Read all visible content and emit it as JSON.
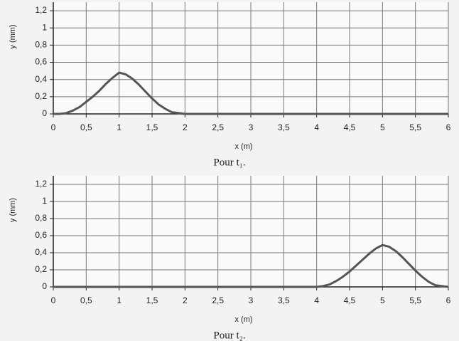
{
  "chart_data": [
    {
      "type": "line",
      "caption": "Pour t₁.",
      "xlabel": "x (m)",
      "ylabel": "y (mm)",
      "xlim": [
        0,
        6
      ],
      "ylim": [
        0,
        1.3
      ],
      "grid": true,
      "xticks": [
        0,
        {
          "value": 0.5,
          "label": "0,5"
        },
        1,
        {
          "value": 1.5,
          "label": "1,5"
        },
        2,
        {
          "value": 2.5,
          "label": "2,5"
        },
        3,
        {
          "value": 3.5,
          "label": "3,5"
        },
        4,
        {
          "value": 4.5,
          "label": "4,5"
        },
        5,
        {
          "value": 5.5,
          "label": "5,5"
        },
        6
      ],
      "yticks": [
        0,
        {
          "value": 0.2,
          "label": "0,2"
        },
        {
          "value": 0.4,
          "label": "0,4"
        },
        {
          "value": 0.6,
          "label": "0,6"
        },
        {
          "value": 0.8,
          "label": "0,8"
        },
        1,
        {
          "value": 1.2,
          "label": "1,2"
        }
      ],
      "series": [
        {
          "color": "#555555",
          "x": [
            0,
            0.1,
            0.2,
            0.3,
            0.4,
            0.5,
            0.6,
            0.7,
            0.8,
            0.9,
            1.0,
            1.1,
            1.2,
            1.3,
            1.4,
            1.5,
            1.6,
            1.7,
            1.8,
            1.9,
            2.0,
            6
          ],
          "values": [
            0,
            0,
            0.01,
            0.04,
            0.08,
            0.14,
            0.2,
            0.27,
            0.35,
            0.42,
            0.48,
            0.46,
            0.41,
            0.34,
            0.26,
            0.18,
            0.11,
            0.06,
            0.02,
            0.01,
            0,
            0
          ]
        }
      ]
    },
    {
      "type": "line",
      "caption": "Pour t₂.",
      "xlabel": "x (m)",
      "ylabel": "y (mm)",
      "xlim": [
        0,
        6
      ],
      "ylim": [
        0,
        1.3
      ],
      "grid": true,
      "xticks": [
        0,
        {
          "value": 0.5,
          "label": "0,5"
        },
        1,
        {
          "value": 1.5,
          "label": "1,5"
        },
        2,
        {
          "value": 2.5,
          "label": "2,5"
        },
        3,
        {
          "value": 3.5,
          "label": "3,5"
        },
        4,
        {
          "value": 4.5,
          "label": "4,5"
        },
        5,
        {
          "value": 5.5,
          "label": "5,5"
        },
        6
      ],
      "yticks": [
        0,
        {
          "value": 0.2,
          "label": "0,2"
        },
        {
          "value": 0.4,
          "label": "0,4"
        },
        {
          "value": 0.6,
          "label": "0,6"
        },
        {
          "value": 0.8,
          "label": "0,8"
        },
        1,
        {
          "value": 1.2,
          "label": "1,2"
        }
      ],
      "series": [
        {
          "color": "#555555",
          "x": [
            0,
            4.0,
            4.1,
            4.2,
            4.3,
            4.4,
            4.5,
            4.6,
            4.7,
            4.8,
            4.9,
            5.0,
            5.1,
            5.2,
            5.3,
            5.4,
            5.5,
            5.6,
            5.7,
            5.8,
            5.9,
            6.0
          ],
          "values": [
            0,
            0,
            0.01,
            0.03,
            0.07,
            0.12,
            0.18,
            0.25,
            0.32,
            0.39,
            0.45,
            0.49,
            0.47,
            0.42,
            0.35,
            0.27,
            0.19,
            0.12,
            0.06,
            0.02,
            0.01,
            0
          ]
        }
      ]
    }
  ]
}
